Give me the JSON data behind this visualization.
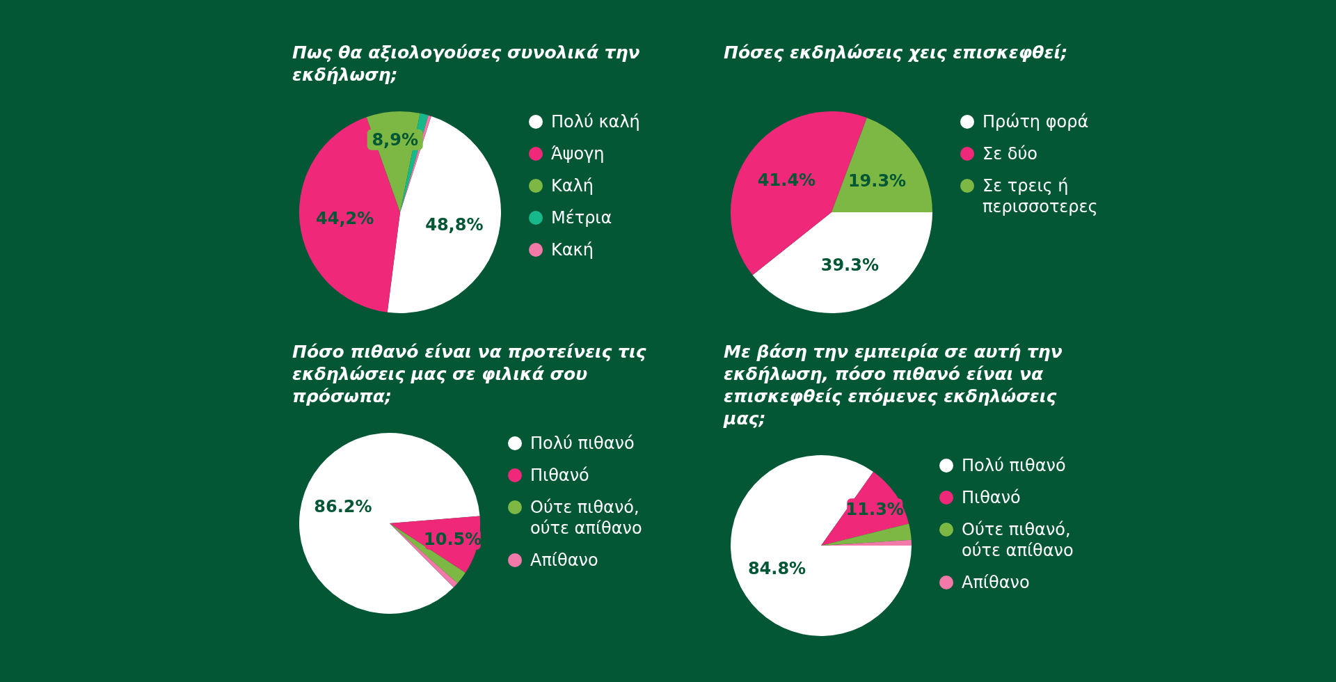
{
  "chart_data": [
    {
      "type": "pie",
      "title": "Πως θα αξιολογούσες συνολικά την εκδήλωση;",
      "categories": [
        "Πολύ καλή",
        "Άψογη",
        "Καλή",
        "Μέτρια",
        "Κακή"
      ],
      "values": [
        48.8,
        44.2,
        8.9,
        1.4,
        0.5
      ],
      "colors": [
        "#ffffff",
        "#f0287a",
        "#7cb843",
        "#17b98a",
        "#f37aa8"
      ],
      "value_labels": [
        "48,8%",
        "44,2%",
        "8,9%",
        null,
        null
      ],
      "legend": "right"
    },
    {
      "type": "pie",
      "title": "Πόσες εκδηλώσεις χεις επισκεφθεί;",
      "categories": [
        "Πρώτη φορά",
        "Σε δύο",
        "Σε τρεις ή περισσοτερες"
      ],
      "values": [
        39.3,
        41.4,
        19.3
      ],
      "colors": [
        "#ffffff",
        "#f0287a",
        "#7cb843"
      ],
      "value_labels": [
        "39.3%",
        "41.4%",
        "19.3%"
      ],
      "legend": "right"
    },
    {
      "type": "pie",
      "title": "Πόσο πιθανό είναι να προτείνεις τις εκδηλώσεις μας σε φιλικά σου πρόσωπα;",
      "categories": [
        "Πολύ πιθανό",
        "Πιθανό",
        "Ούτε πιθανό, ούτε απίθανο",
        "Απίθανο"
      ],
      "values": [
        86.2,
        10.5,
        2.3,
        1.0
      ],
      "colors": [
        "#ffffff",
        "#f0287a",
        "#7cb843",
        "#f37aa8"
      ],
      "value_labels": [
        "86.2%",
        "10.5%",
        null,
        null
      ],
      "legend": "right"
    },
    {
      "type": "pie",
      "title": "Με βάση την εμπειρία σε αυτή την εκδήλωση, πόσο πιθανό είναι να επισκεφθείς επόμενες εκδηλώσεις μας;",
      "categories": [
        "Πολύ πιθανό",
        "Πιθανό",
        "Ούτε πιθανό, ούτε απίθανο",
        "Απίθανο"
      ],
      "values": [
        84.8,
        11.3,
        2.9,
        1.0
      ],
      "colors": [
        "#ffffff",
        "#f0287a",
        "#7cb843",
        "#f37aa8"
      ],
      "value_labels": [
        "84.8%",
        "11.3%",
        null,
        null
      ],
      "legend": "right"
    }
  ]
}
